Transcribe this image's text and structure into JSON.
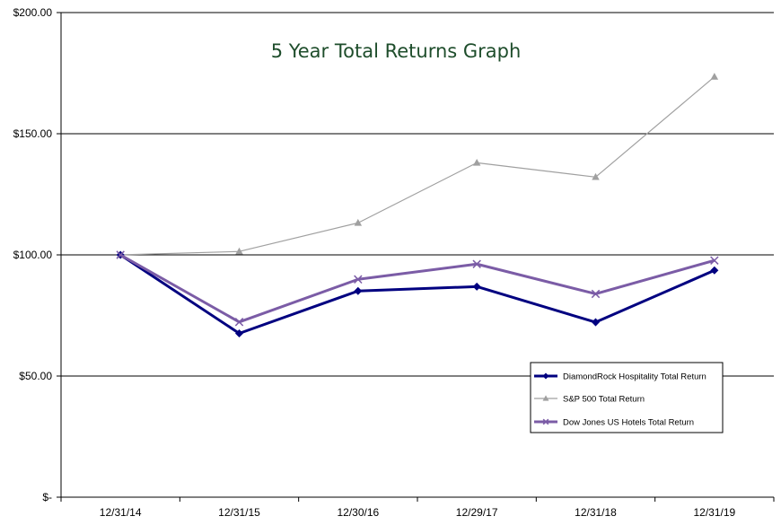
{
  "chart_data": {
    "type": "line",
    "title": "5 Year Total Returns Graph",
    "xlabel": "",
    "ylabel": "",
    "categories": [
      "12/31/14",
      "12/31/15",
      "12/30/16",
      "12/29/17",
      "12/31/18",
      "12/31/19"
    ],
    "y_ticks": [
      "$-",
      "$50.00",
      "$100.00",
      "$150.00",
      "$200.00"
    ],
    "ylim": [
      0,
      200
    ],
    "grid": "horizontal",
    "legend_position": "bottom-right",
    "series": [
      {
        "name": "DiamondRock Hospitality Total Return",
        "values": [
          100,
          67.6,
          85.1,
          86.9,
          72.2,
          93.6
        ],
        "color": "#000080",
        "marker": "diamond"
      },
      {
        "name": "S&P 500 Total Return",
        "values": [
          100,
          101.4,
          113.2,
          138.0,
          132.1,
          173.5
        ],
        "color": "#a0a0a0",
        "marker": "triangle"
      },
      {
        "name": "Dow Jones US Hotels Total Return",
        "values": [
          100,
          72.3,
          89.9,
          96.2,
          83.9,
          97.7
        ],
        "color": "#7b5ca6",
        "marker": "x"
      }
    ]
  }
}
